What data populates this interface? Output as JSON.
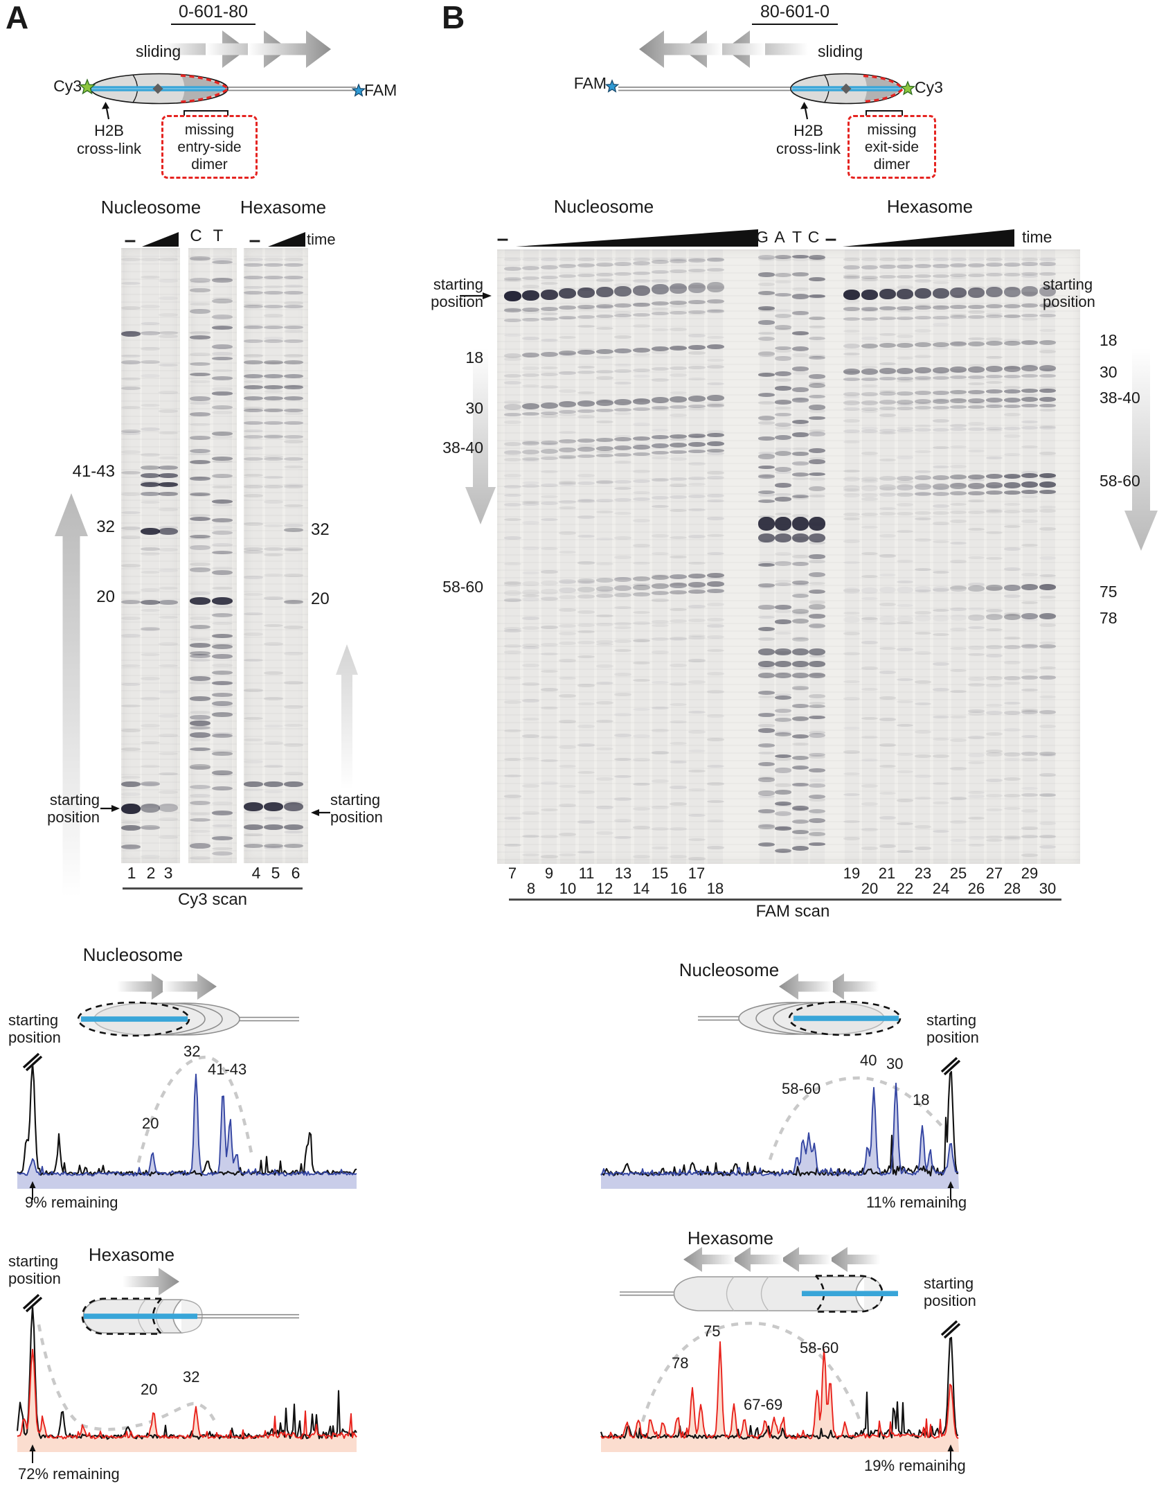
{
  "panel_a": {
    "label": "A",
    "title": "0-601-80",
    "diagram": {
      "sliding_label": "sliding",
      "cy3_label": "Cy3",
      "fam_label": "FAM",
      "crosslink_label": "H2B\ncross-link",
      "missing_dimer_label": "missing\nentry-side\ndimer",
      "cy3_color": "#8dc63f",
      "fam_color": "#2f9ad4",
      "dna_color": "#38a5d8"
    },
    "gel": {
      "nucleosome_header": "Nucleosome",
      "hexasome_header": "Hexasome",
      "no_enzyme_marks": [
        "–",
        "–"
      ],
      "sequencing_lanes": [
        "C",
        "T"
      ],
      "time_label": "time",
      "size_labels_left": [
        "41-43",
        "32",
        "20"
      ],
      "size_labels_right": [
        "32",
        "20"
      ],
      "starting_position_left": "starting\nposition",
      "starting_position_right": "starting\nposition",
      "lane_numbers": [
        "1",
        "2",
        "3",
        "4",
        "5",
        "6"
      ],
      "scan_label": "Cy3 scan"
    },
    "nucleosome_trace": {
      "title": "Nucleosome",
      "starting_position": "starting\nposition",
      "peak_labels": [
        "20",
        "32",
        "41-43"
      ],
      "remaining_label": "9% remaining",
      "trace_color": "#3445a2",
      "fill_color": "#c9cde9"
    },
    "hexasome_trace": {
      "title": "Hexasome",
      "starting_position": "starting\nposition",
      "peak_labels": [
        "20",
        "32"
      ],
      "remaining_label": "72% remaining",
      "trace_color": "#e8221c",
      "fill_color": "#fbddcf"
    }
  },
  "panel_b": {
    "label": "B",
    "title": "80-601-0",
    "diagram": {
      "sliding_label": "sliding",
      "fam_label": "FAM",
      "cy3_label": "Cy3",
      "crosslink_label": "H2B\ncross-link",
      "missing_dimer_label": "missing\nexit-side\ndimer",
      "cy3_color": "#8dc63f",
      "fam_color": "#2f9ad4",
      "dna_color": "#38a5d8"
    },
    "gel": {
      "nucleosome_header": "Nucleosome",
      "hexasome_header": "Hexasome",
      "no_enzyme_marks": [
        "–",
        "–"
      ],
      "sequencing_lanes": [
        "G",
        "A",
        "T",
        "C"
      ],
      "time_label": "time",
      "size_labels_left": [
        "18",
        "30",
        "38-40",
        "58-60"
      ],
      "size_labels_right": [
        "18",
        "30",
        "38-40",
        "58-60",
        "75",
        "78"
      ],
      "starting_position_left": "starting\nposition",
      "starting_position_right": "starting\nposition",
      "lane_numbers": [
        "7",
        "8",
        "9",
        "10",
        "11",
        "12",
        "13",
        "14",
        "15",
        "16",
        "17",
        "18",
        "19",
        "20",
        "21",
        "22",
        "23",
        "24",
        "25",
        "26",
        "27",
        "28",
        "29",
        "30"
      ],
      "scan_label": "FAM scan"
    },
    "nucleosome_trace": {
      "title": "Nucleosome",
      "starting_position": "starting\nposition",
      "peak_labels": [
        "58-60",
        "40",
        "30",
        "18"
      ],
      "remaining_label": "11% remaining",
      "trace_color": "#3445a2",
      "fill_color": "#c9cde9"
    },
    "hexasome_trace": {
      "title": "Hexasome",
      "starting_position": "starting\nposition",
      "peak_labels": [
        "78",
        "75",
        "67-69",
        "58-60"
      ],
      "remaining_label": "19% remaining",
      "trace_color": "#e8221c",
      "fill_color": "#fbddcf"
    }
  }
}
